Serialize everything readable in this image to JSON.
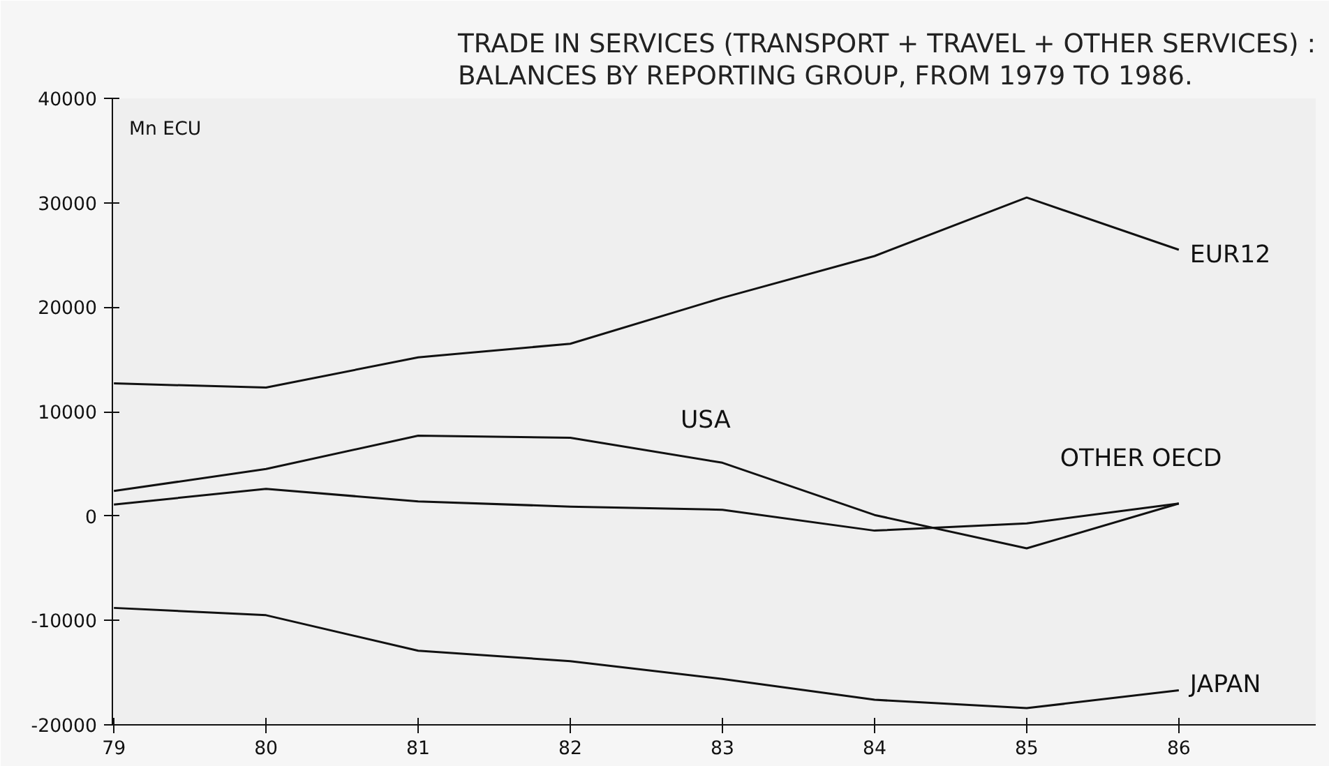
{
  "chart_data": {
    "type": "line",
    "title": "TRADE IN SERVICES (TRANSPORT + TRAVEL + OTHER SERVICES) :\nBALANCES BY REPORTING GROUP, FROM 1979 TO 1986.",
    "ylabel": "Mn ECU",
    "categories": [
      "79",
      "80",
      "81",
      "82",
      "83",
      "84",
      "85",
      "86"
    ],
    "ylim": [
      -20000,
      40000
    ],
    "yticks": [
      -20000,
      -10000,
      0,
      10000,
      20000,
      30000,
      40000
    ],
    "grid": false,
    "marker": "none",
    "line_style": "solid",
    "series": [
      {
        "name": "EUR12",
        "color": "#111111",
        "values": [
          12700,
          12300,
          15200,
          16500,
          20900,
          24900,
          30500,
          25500
        ]
      },
      {
        "name": "USA",
        "color": "#111111",
        "values": [
          2400,
          4500,
          7700,
          7500,
          5100,
          100,
          -3100,
          1200
        ]
      },
      {
        "name": "OTHER OECD",
        "color": "#111111",
        "values": [
          1100,
          2600,
          1400,
          900,
          600,
          -1400,
          -700,
          1200
        ]
      },
      {
        "name": "JAPAN",
        "color": "#111111",
        "values": [
          -8800,
          -9500,
          -12900,
          -13900,
          -15600,
          -17600,
          -18400,
          -16700
        ]
      }
    ]
  }
}
